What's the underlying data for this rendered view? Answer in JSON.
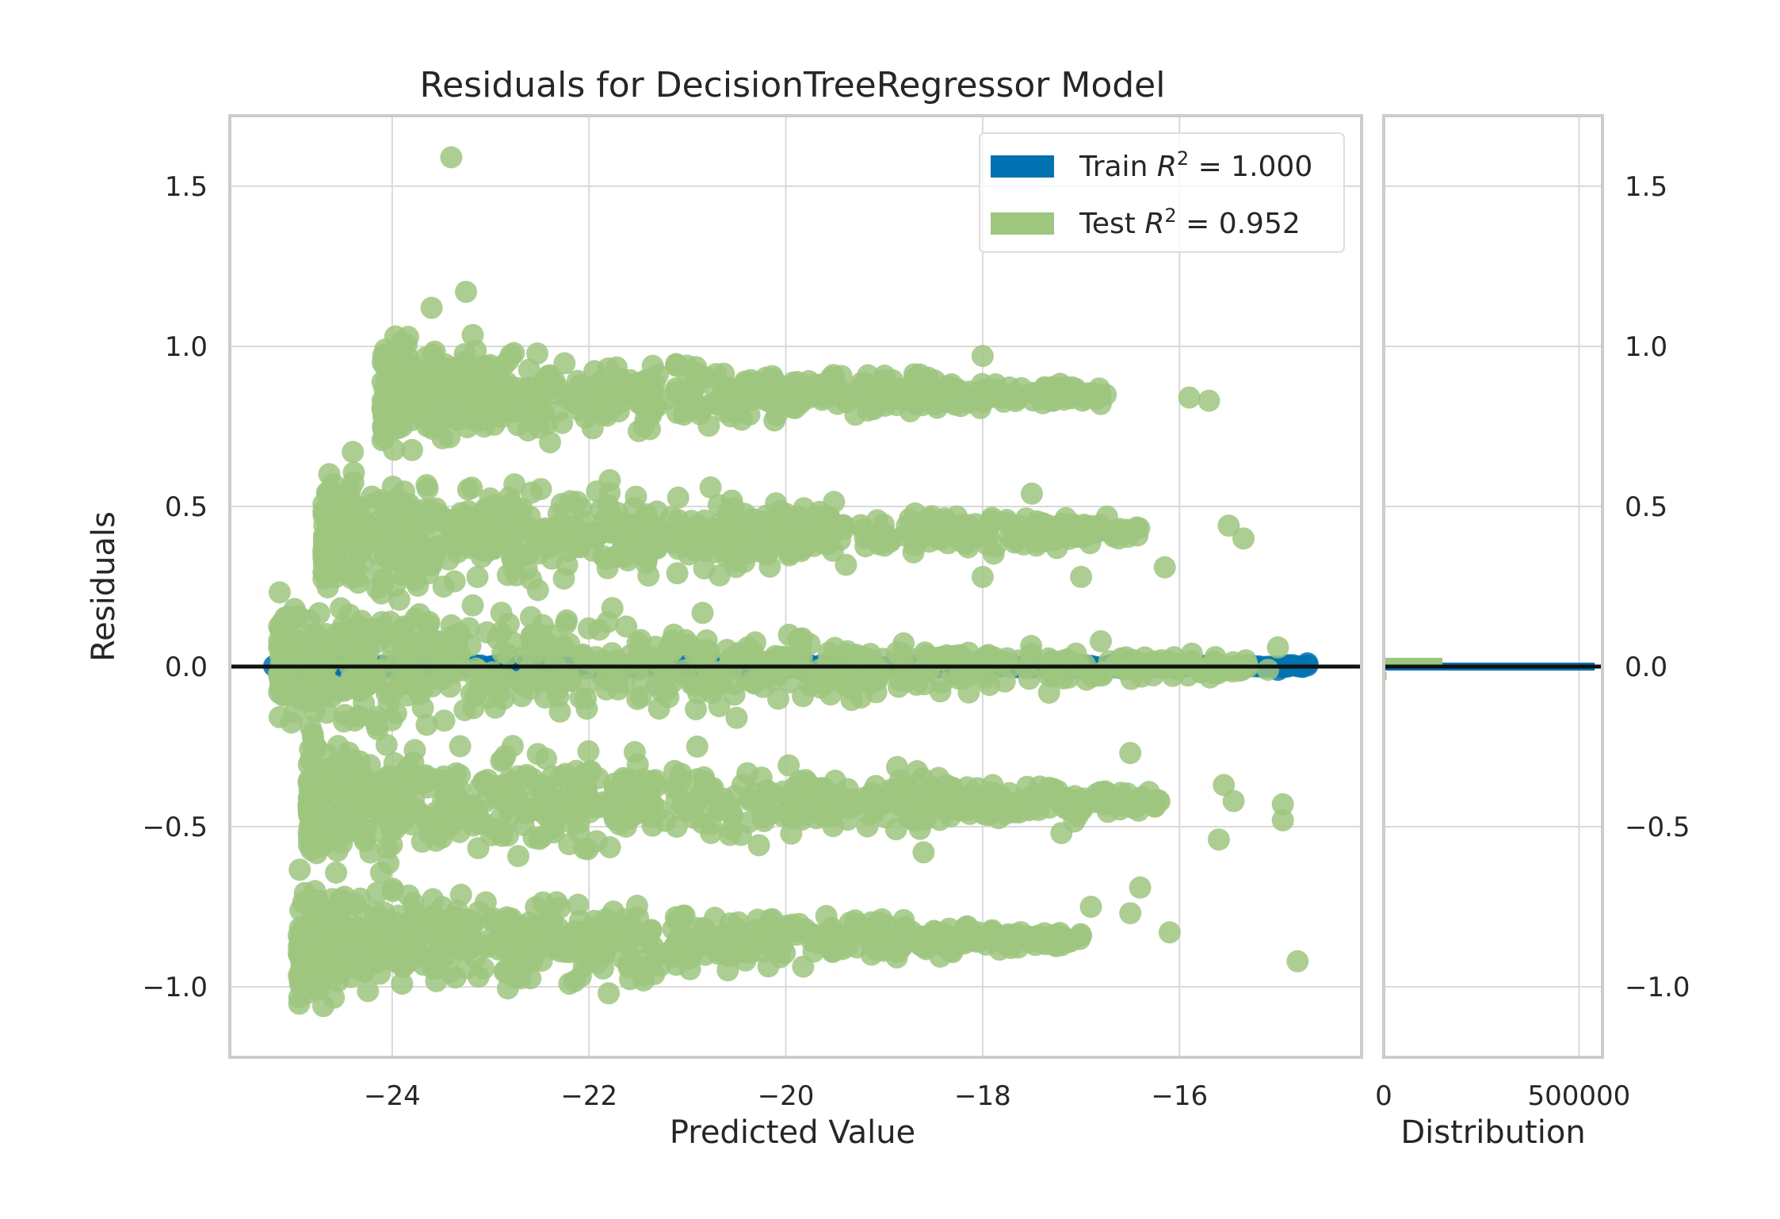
{
  "chart_data": {
    "type": "scatter",
    "title": "Residuals for DecisionTreeRegressor Model",
    "xlabel": "Predicted Value",
    "ylabel": "Residuals",
    "xlim": [
      -25.65,
      -14.15
    ],
    "ylim": [
      -1.22,
      1.72
    ],
    "x_ticks": [
      {
        "value": -24,
        "label": "−24"
      },
      {
        "value": -22,
        "label": "−22"
      },
      {
        "value": -20,
        "label": "−20"
      },
      {
        "value": -18,
        "label": "−18"
      },
      {
        "value": -16,
        "label": "−16"
      }
    ],
    "y_ticks": [
      {
        "value": 1.5,
        "label": "1.5"
      },
      {
        "value": 1.0,
        "label": "1.0"
      },
      {
        "value": 0.5,
        "label": "0.5"
      },
      {
        "value": 0.0,
        "label": "0.0"
      },
      {
        "value": -0.5,
        "label": "−0.5"
      },
      {
        "value": -1.0,
        "label": "−1.0"
      }
    ],
    "grid": true,
    "reference_line_y": 0,
    "legend": {
      "position": "upper-right",
      "entries": [
        {
          "prefix": "Train ",
          "r2": "R",
          "sup": "2",
          "suffix": " = 1.000",
          "color": "#0072b2"
        },
        {
          "prefix": "Test ",
          "r2": "R",
          "sup": "2",
          "suffix": " = 0.952",
          "color": "#9dc67f"
        }
      ]
    },
    "series": [
      {
        "name": "Train",
        "color": "#0072b2",
        "bands": [
          {
            "residual": 0.0,
            "x_start": -25.2,
            "x_end": -14.65,
            "spread_start": 0.01,
            "spread_end": 0.005
          }
        ],
        "outliers": [
          [
            -14.9,
            0.0
          ],
          [
            -14.75,
            0.0
          ],
          [
            -15.0,
            -0.01
          ],
          [
            -14.7,
            0.01
          ]
        ]
      },
      {
        "name": "Test",
        "color": "#9dc67f",
        "bands": [
          {
            "residual": 0.85,
            "x_start": -24.1,
            "x_end": -16.7,
            "spread_start": 0.16,
            "spread_end": 0.02
          },
          {
            "residual": 0.42,
            "x_start": -24.7,
            "x_end": -16.4,
            "spread_start": 0.2,
            "spread_end": 0.03
          },
          {
            "residual": 0.0,
            "x_start": -25.15,
            "x_end": -15.3,
            "spread_start": 0.22,
            "spread_end": 0.03
          },
          {
            "residual": -0.42,
            "x_start": -24.85,
            "x_end": -16.2,
            "spread_start": 0.2,
            "spread_end": 0.03
          },
          {
            "residual": -0.85,
            "x_start": -24.95,
            "x_end": -17.0,
            "spread_start": 0.19,
            "spread_end": 0.02
          }
        ],
        "outliers": [
          [
            -23.4,
            1.59
          ],
          [
            -23.25,
            1.17
          ],
          [
            -23.6,
            1.12
          ],
          [
            -18.0,
            0.97
          ],
          [
            -15.9,
            0.84
          ],
          [
            -15.7,
            0.83
          ],
          [
            -16.8,
            0.82
          ],
          [
            -15.5,
            0.44
          ],
          [
            -15.35,
            0.4
          ],
          [
            -16.15,
            0.31
          ],
          [
            -17.0,
            0.28
          ],
          [
            -18.0,
            0.28
          ],
          [
            -17.5,
            0.54
          ],
          [
            -15.0,
            0.06
          ],
          [
            -15.1,
            -0.01
          ],
          [
            -15.55,
            -0.37
          ],
          [
            -15.45,
            -0.42
          ],
          [
            -14.95,
            -0.43
          ],
          [
            -14.95,
            -0.48
          ],
          [
            -15.6,
            -0.54
          ],
          [
            -16.5,
            -0.27
          ],
          [
            -16.4,
            -0.69
          ],
          [
            -16.5,
            -0.77
          ],
          [
            -16.1,
            -0.83
          ],
          [
            -14.8,
            -0.92
          ],
          [
            -18.6,
            -0.58
          ],
          [
            -21.8,
            -1.02
          ],
          [
            -23.9,
            -0.99
          ],
          [
            -24.7,
            -1.06
          ],
          [
            -20.9,
            -0.25
          ],
          [
            -20.5,
            -0.16
          ],
          [
            -17.2,
            -0.52
          ],
          [
            -24.4,
            0.67
          ],
          [
            -23.9,
            0.75
          ],
          [
            -24.6,
            0.33
          ],
          [
            -22.2,
            -0.99
          ],
          [
            -17.0,
            -0.84
          ],
          [
            -16.9,
            -0.75
          ]
        ]
      }
    ],
    "side_panel": {
      "xlabel": "Distribution",
      "x_ticks": [
        {
          "value": 0,
          "label": "0"
        },
        {
          "value": 500000,
          "label": "500000"
        }
      ],
      "xlim": [
        0,
        560000
      ],
      "bars": [
        {
          "series": "Train",
          "residual": 0.0,
          "count": 540000
        },
        {
          "series": "Test",
          "residual": 0.015,
          "count": 150000
        },
        {
          "series": "Test",
          "residual": -0.03,
          "count": 7000
        }
      ]
    }
  }
}
